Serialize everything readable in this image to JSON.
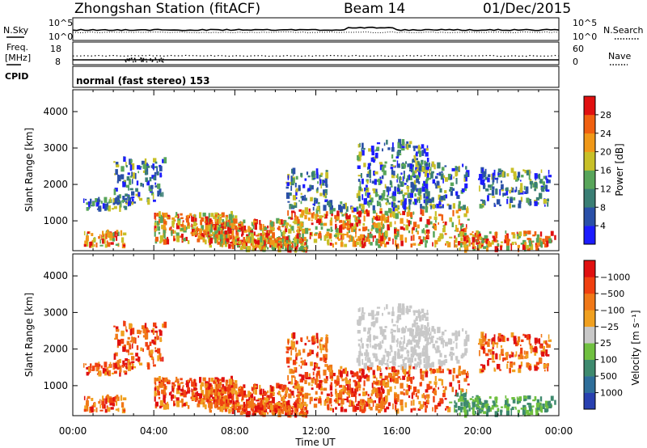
{
  "header": {
    "station": "Zhongshan Station (fitACF)",
    "beam": "Beam 14",
    "date": "01/Dec/2015"
  },
  "status": {
    "nsky_label": "N.Sky",
    "nsky_ticks": [
      "10^5",
      "10^0"
    ],
    "nsearch_label": "N.Search",
    "nsearch_ticks": [
      "10^5",
      "10^0"
    ],
    "freq_label_1": "Freq.",
    "freq_label_2": "[MHz]",
    "freq_ticks": [
      "18",
      "8"
    ],
    "nave_label": "Nave",
    "nave_ticks": [
      "60",
      "0"
    ],
    "cpid_label": "CPID",
    "cpid_value": "normal (fast stereo) 153"
  },
  "x_axis": {
    "label": "Time UT",
    "ticks": [
      "00:00",
      "04:00",
      "08:00",
      "12:00",
      "16:00",
      "20:00",
      "00:00"
    ],
    "range_hours": [
      0,
      24
    ]
  },
  "panels": [
    {
      "id": "power",
      "ylabel": "Slant Range [km]",
      "yticks": [
        "1000",
        "2000",
        "3000",
        "4000"
      ],
      "ylim": [
        180,
        4600
      ],
      "colorbar": {
        "label": "Power [dB]",
        "ticks": [
          "4",
          "8",
          "12",
          "16",
          "20",
          "24",
          "28"
        ],
        "colors": [
          "#1c1cff",
          "#2a50a8",
          "#3a7e74",
          "#58a55a",
          "#c8c028",
          "#f09818",
          "#f06010",
          "#e01010"
        ]
      }
    },
    {
      "id": "velocity",
      "ylabel": "Slant Range [km]",
      "yticks": [
        "1000",
        "2000",
        "3000",
        "4000"
      ],
      "ylim": [
        180,
        4600
      ],
      "colorbar": {
        "label": "Velocity [m s⁻¹]",
        "ticks": [
          "1000",
          "500",
          "100",
          "25",
          "−25",
          "−100",
          "−500",
          "−1000"
        ],
        "colors": [
          "#2840b0",
          "#2e6e9a",
          "#3e8a6e",
          "#70c040",
          "#c8c8c8",
          "#f0a020",
          "#f07818",
          "#f04010",
          "#e01010"
        ]
      }
    }
  ]
}
